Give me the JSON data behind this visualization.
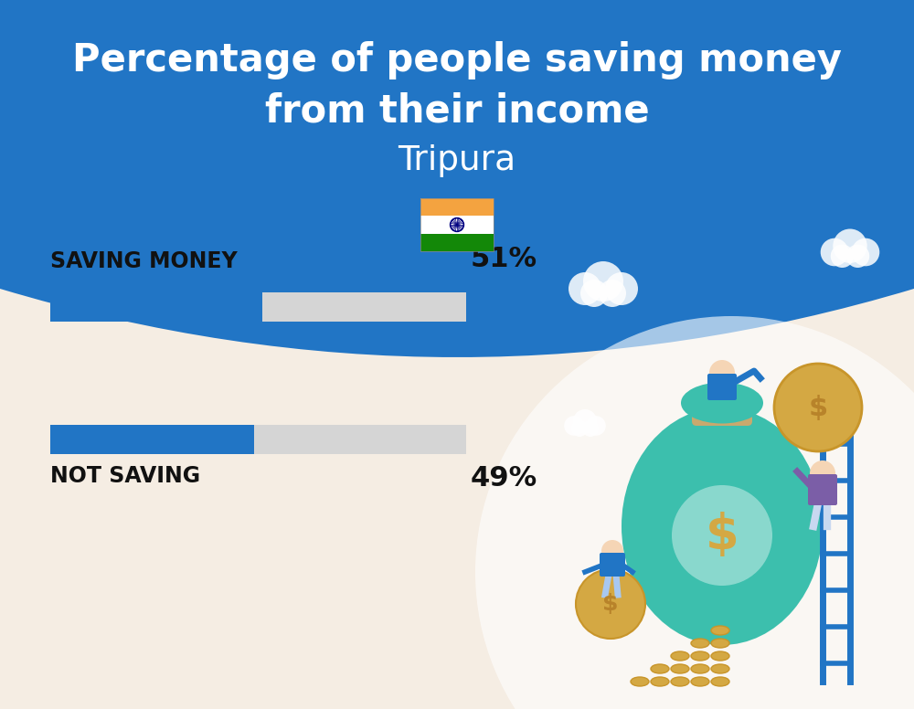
{
  "title_line1": "Percentage of people saving money",
  "title_line2": "from their income",
  "subtitle": "Tripura",
  "bg_top_color": "#2175C5",
  "bg_bottom_color": "#F5EDE3",
  "title_color": "#FFFFFF",
  "subtitle_color": "#FFFFFF",
  "bar1_label": "SAVING MONEY",
  "bar1_value": 51,
  "bar1_pct": "51%",
  "bar2_label": "NOT SAVING",
  "bar2_value": 49,
  "bar2_pct": "49%",
  "bar_filled_color": "#2175C5",
  "bar_empty_color": "#D5D5D5",
  "label_color": "#111111",
  "title_fontsize": 30,
  "subtitle_fontsize": 27,
  "label_fontsize": 17,
  "pct_fontsize": 22,
  "flag_orange": "#F4A340",
  "flag_white": "#FFFFFF",
  "flag_green": "#138808",
  "flag_navy": "#000080",
  "cloud_color": "#FFFFFF",
  "bag_color": "#3CBFAD",
  "bag_tie_color": "#C8A96E",
  "coin_color": "#D4A843",
  "coin_text_color": "#B8832A",
  "ladder_color": "#2175C5",
  "person1_shirt": "#2175C5",
  "person2_shirt": "#7B5EA7",
  "person3_shirt": "#2175C5",
  "illustration_bg": "#FFFFFF"
}
